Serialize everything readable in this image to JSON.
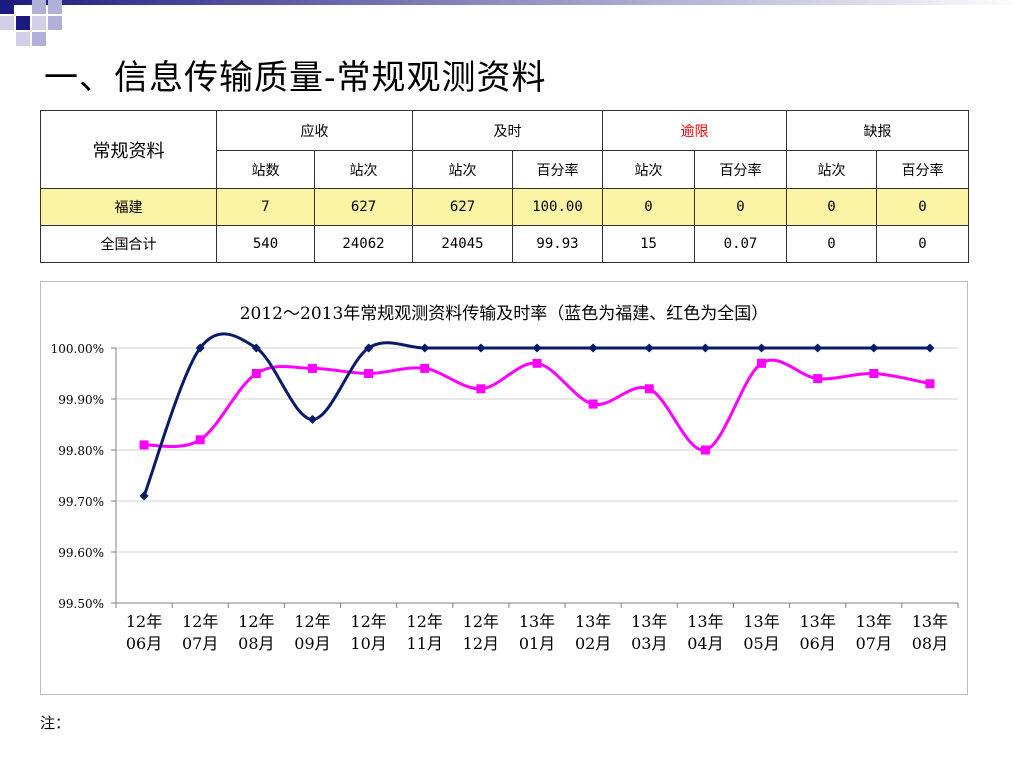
{
  "slide": {
    "title": "一、信息传输质量-常规观测资料",
    "note": "注："
  },
  "table": {
    "corner": "常规资料",
    "groups": [
      "应收",
      "及时",
      "逾限",
      "缺报"
    ],
    "subheaders": [
      "站数",
      "站次",
      "站次",
      "百分率",
      "站次",
      "百分率",
      "站次",
      "百分率"
    ],
    "rows": [
      {
        "name": "福建",
        "cells": [
          "7",
          "627",
          "627",
          "100.00",
          "0",
          "0",
          "0",
          "0"
        ]
      },
      {
        "name": "全国合计",
        "cells": [
          "540",
          "24062",
          "24045",
          "99.93",
          "15",
          "0.07",
          "0",
          "0"
        ]
      }
    ]
  },
  "chart_data": {
    "type": "line",
    "title": "2012～2013年常规观测资料传输及时率（蓝色为福建、红色为全国）",
    "categories": [
      "12年06月",
      "12年07月",
      "12年08月",
      "12年09月",
      "12年10月",
      "12年11月",
      "12年12月",
      "13年01月",
      "13年02月",
      "13年03月",
      "13年04月",
      "13年05月",
      "13年06月",
      "13年07月",
      "13年08月"
    ],
    "series": [
      {
        "color": "#0a1a6b",
        "marker": "diamond",
        "values": [
          99.71,
          100.0,
          100.0,
          99.86,
          100.0,
          100.0,
          100.0,
          100.0,
          100.0,
          100.0,
          100.0,
          100.0,
          100.0,
          100.0,
          100.0
        ]
      },
      {
        "color": "#ff00ff",
        "marker": "square",
        "values": [
          99.81,
          99.82,
          99.95,
          99.96,
          99.95,
          99.96,
          99.92,
          99.97,
          99.89,
          99.92,
          99.8,
          99.97,
          99.94,
          99.95,
          99.93
        ]
      }
    ],
    "ylim": [
      99.5,
      100.0
    ],
    "yticks": [
      "99.50%",
      "99.60%",
      "99.70%",
      "99.80%",
      "99.90%",
      "100.00%"
    ],
    "grid": true,
    "legend": "none"
  }
}
